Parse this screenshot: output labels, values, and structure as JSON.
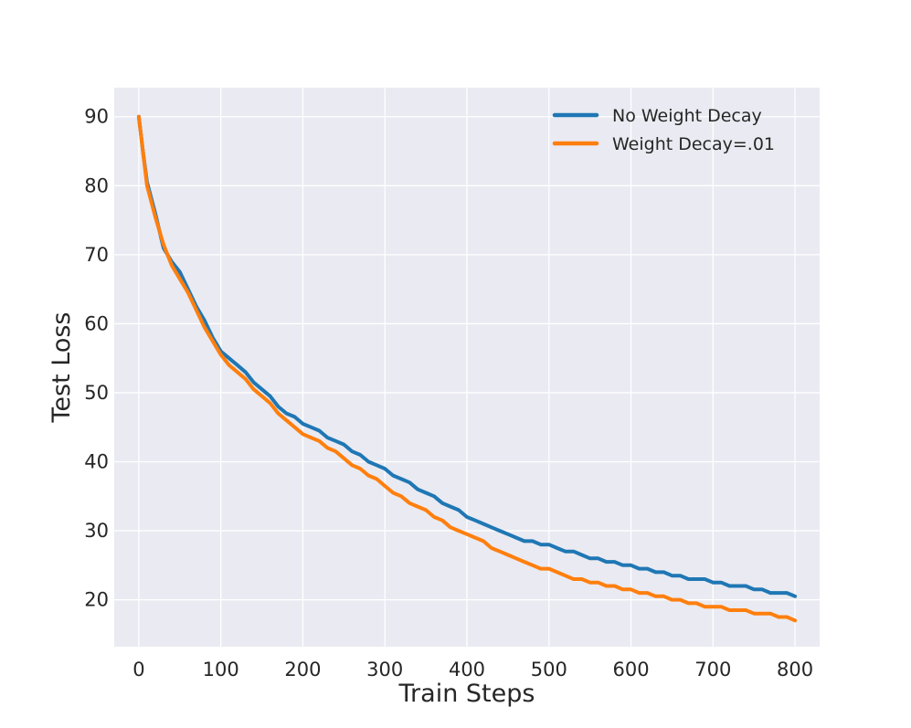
{
  "chart_data": {
    "type": "line",
    "title": "",
    "xlabel": "Train Steps",
    "ylabel": "Test Loss",
    "xlim": [
      -30,
      830
    ],
    "ylim": [
      13.2,
      94.2
    ],
    "xticks": [
      0,
      100,
      200,
      300,
      400,
      500,
      600,
      700,
      800
    ],
    "yticks": [
      20,
      30,
      40,
      50,
      60,
      70,
      80,
      90
    ],
    "grid": true,
    "legend_position": "top-right",
    "series": [
      {
        "name": "No Weight Decay",
        "color": "#1f77b4",
        "x": [
          0,
          5,
          10,
          20,
          30,
          40,
          50,
          60,
          70,
          80,
          90,
          100,
          110,
          120,
          130,
          140,
          150,
          160,
          170,
          180,
          190,
          200,
          210,
          220,
          230,
          240,
          250,
          260,
          270,
          280,
          290,
          300,
          310,
          320,
          330,
          340,
          350,
          360,
          370,
          380,
          390,
          400,
          410,
          420,
          430,
          440,
          450,
          460,
          470,
          480,
          490,
          500,
          510,
          520,
          530,
          540,
          550,
          560,
          570,
          580,
          590,
          600,
          610,
          620,
          630,
          640,
          650,
          660,
          670,
          680,
          690,
          700,
          710,
          720,
          730,
          740,
          750,
          760,
          770,
          780,
          790,
          800
        ],
        "y": [
          90.0,
          85.0,
          80.5,
          76.0,
          71.0,
          69.0,
          67.5,
          65.0,
          62.5,
          60.5,
          58.0,
          56.0,
          55.0,
          54.0,
          53.0,
          51.5,
          50.5,
          49.5,
          48.0,
          47.0,
          46.5,
          45.5,
          45.0,
          44.5,
          43.5,
          43.0,
          42.5,
          41.5,
          41.0,
          40.0,
          39.5,
          39.0,
          38.0,
          37.5,
          37.0,
          36.0,
          35.5,
          35.0,
          34.0,
          33.5,
          33.0,
          32.0,
          31.5,
          31.0,
          30.5,
          30.0,
          29.5,
          29.0,
          28.5,
          28.5,
          28.0,
          28.0,
          27.5,
          27.0,
          27.0,
          26.5,
          26.0,
          26.0,
          25.5,
          25.5,
          25.0,
          25.0,
          24.5,
          24.5,
          24.0,
          24.0,
          23.5,
          23.5,
          23.0,
          23.0,
          23.0,
          22.5,
          22.5,
          22.0,
          22.0,
          22.0,
          21.5,
          21.5,
          21.0,
          21.0,
          21.0,
          20.5
        ]
      },
      {
        "name": "Weight Decay=.01",
        "color": "#ff7f0e",
        "x": [
          0,
          5,
          10,
          20,
          30,
          40,
          50,
          60,
          70,
          80,
          90,
          100,
          110,
          120,
          130,
          140,
          150,
          160,
          170,
          180,
          190,
          200,
          210,
          220,
          230,
          240,
          250,
          260,
          270,
          280,
          290,
          300,
          310,
          320,
          330,
          340,
          350,
          360,
          370,
          380,
          390,
          400,
          410,
          420,
          430,
          440,
          450,
          460,
          470,
          480,
          490,
          500,
          510,
          520,
          530,
          540,
          550,
          560,
          570,
          580,
          590,
          600,
          610,
          620,
          630,
          640,
          650,
          660,
          670,
          680,
          690,
          700,
          710,
          720,
          730,
          740,
          750,
          760,
          770,
          780,
          790,
          800
        ],
        "y": [
          90.0,
          85.0,
          80.0,
          75.5,
          71.5,
          68.5,
          66.5,
          64.5,
          62.0,
          59.5,
          57.5,
          55.5,
          54.0,
          53.0,
          52.0,
          50.5,
          49.5,
          48.5,
          47.0,
          46.0,
          45.0,
          44.0,
          43.5,
          43.0,
          42.0,
          41.5,
          40.5,
          39.5,
          39.0,
          38.0,
          37.5,
          36.5,
          35.5,
          35.0,
          34.0,
          33.5,
          33.0,
          32.0,
          31.5,
          30.5,
          30.0,
          29.5,
          29.0,
          28.5,
          27.5,
          27.0,
          26.5,
          26.0,
          25.5,
          25.0,
          24.5,
          24.5,
          24.0,
          23.5,
          23.0,
          23.0,
          22.5,
          22.5,
          22.0,
          22.0,
          21.5,
          21.5,
          21.0,
          21.0,
          20.5,
          20.5,
          20.0,
          20.0,
          19.5,
          19.5,
          19.0,
          19.0,
          19.0,
          18.5,
          18.5,
          18.5,
          18.0,
          18.0,
          18.0,
          17.5,
          17.5,
          17.0
        ]
      }
    ]
  }
}
